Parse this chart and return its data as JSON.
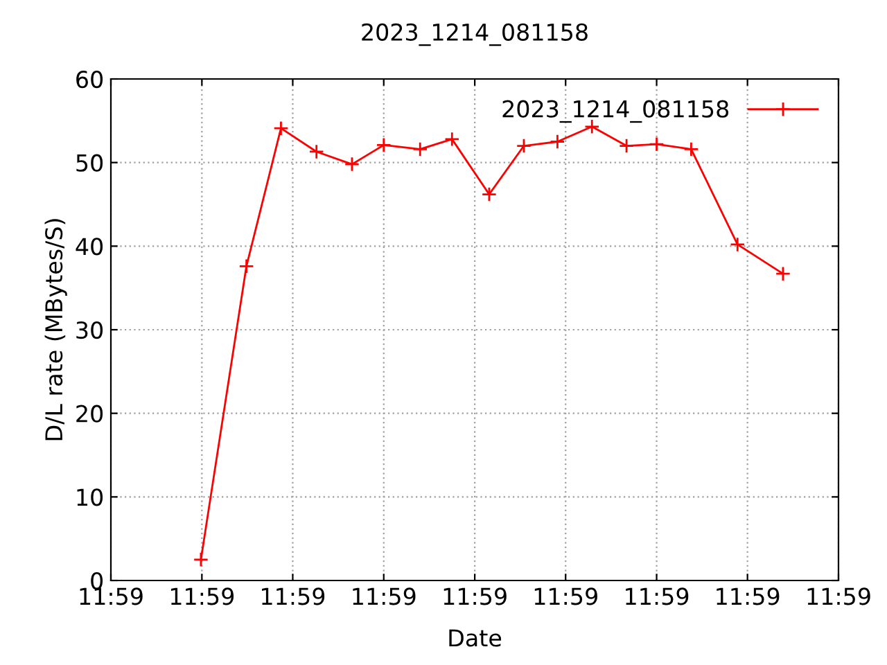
{
  "chart_data": {
    "type": "line",
    "title": "2023_1214_081158",
    "xlabel": "Date",
    "ylabel": "D/L rate (MBytes/S)",
    "x": [
      11.983883,
      11.984161,
      11.984372,
      11.984589,
      11.984806,
      11.985,
      11.985222,
      11.985417,
      11.985644,
      11.985856,
      11.986061,
      11.986272,
      11.986483,
      11.986667,
      11.986878,
      11.987161,
      11.987439
    ],
    "series": [
      {
        "name": "2023_1214_081158",
        "color": "#ff0000",
        "values": [
          2.5,
          37.6,
          54.1,
          51.3,
          49.8,
          52.1,
          51.6,
          52.8,
          46.2,
          52.0,
          52.5,
          54.3,
          52.0,
          52.2,
          51.6,
          40.2,
          36.7
        ]
      }
    ],
    "xlim": [
      11.983333,
      11.987778
    ],
    "xticks": [
      {
        "value": 11.983333,
        "label": "11:59"
      },
      {
        "value": 11.983889,
        "label": "11:59"
      },
      {
        "value": 11.984444,
        "label": "11:59"
      },
      {
        "value": 11.985,
        "label": "11:59"
      },
      {
        "value": 11.985556,
        "label": "11:59"
      },
      {
        "value": 11.986111,
        "label": "11:59"
      },
      {
        "value": 11.986667,
        "label": "11:59"
      },
      {
        "value": 11.987222,
        "label": "11:59"
      },
      {
        "value": 11.987778,
        "label": "11:59"
      }
    ],
    "ylim": [
      0,
      60
    ],
    "yticks": [
      0,
      10,
      20,
      30,
      40,
      50,
      60
    ],
    "grid": true,
    "legend": "top right",
    "marker": "cross",
    "line_style": "solid"
  }
}
